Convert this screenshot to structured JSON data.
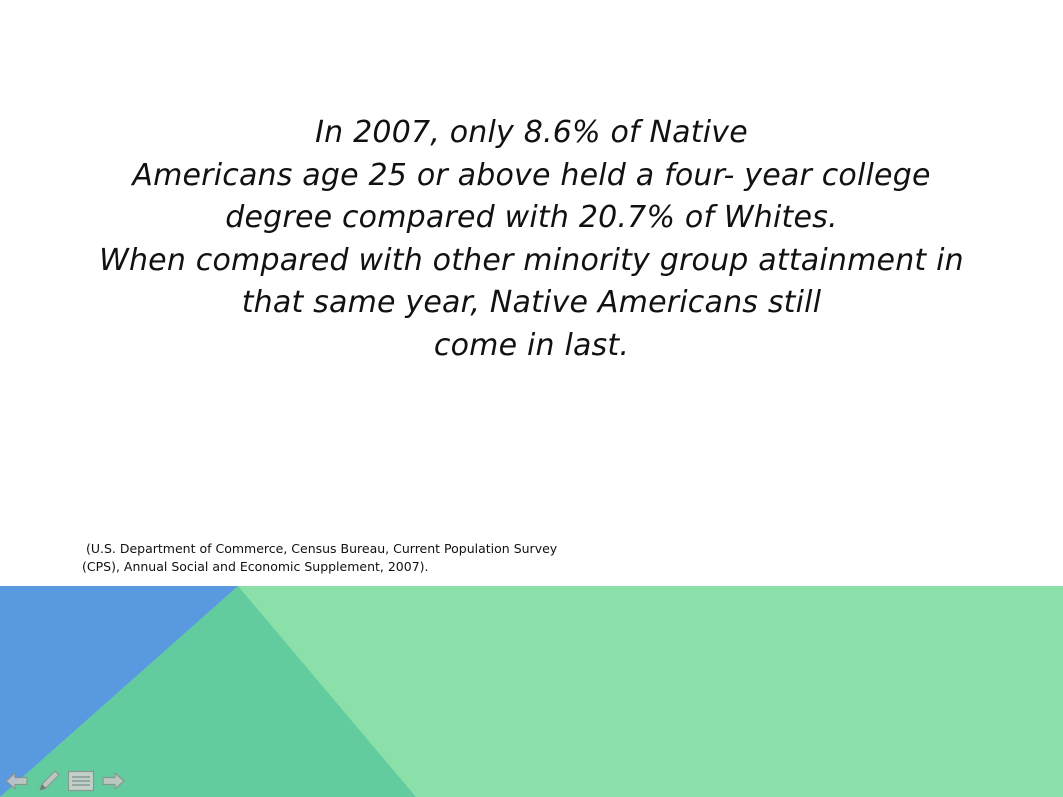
{
  "slide": {
    "main_lines": [
      "In 2007, only 8.6% of Native",
      "Americans age 25 or above held a four- year college",
      "degree compared with 20.7% of Whites.",
      "When compared with other minority group attainment in",
      "that same year, Native Americans still",
      "come in last."
    ],
    "citation_lines": [
      " (U.S. Department of Commerce, Census Bureau, Current Population Survey",
      "(CPS), Annual Social and Economic Supplement, 2007)."
    ]
  },
  "colors": {
    "background": "#ffffff",
    "band_green": "#8be0aa",
    "triangle_blue": "#5899e0",
    "triangle_teal": "#62cc9e",
    "text": "#111111",
    "control_gray": "#b0b0b0"
  },
  "controls": {
    "icons": [
      "arrow-left-icon",
      "pen-icon",
      "menu-icon",
      "arrow-right-icon"
    ]
  }
}
